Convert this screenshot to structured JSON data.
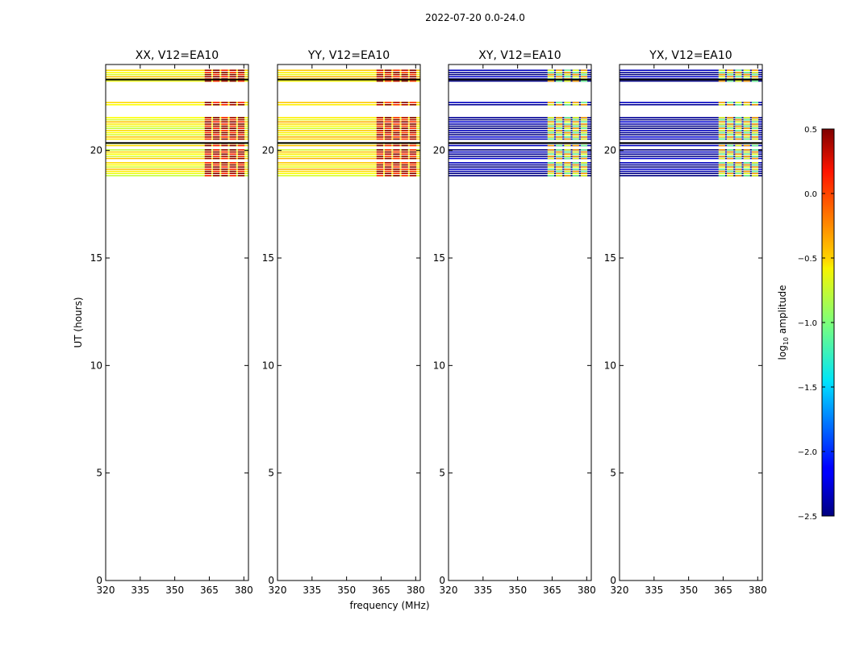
{
  "chart_data": {
    "type": "heatmap",
    "suptitle": "2022-07-20 0.0-24.0",
    "xlabel": "frequency (MHz)",
    "ylabel": "UT (hours)",
    "xlim": [
      320,
      382
    ],
    "ylim": [
      0,
      24
    ],
    "xticks": [
      320,
      335,
      350,
      365,
      380
    ],
    "yticks": [
      0,
      5,
      10,
      15,
      20
    ],
    "colorbar": {
      "label": "log10 amplitude",
      "label_main": "log",
      "label_sub": "10",
      "label_rest": " amplitude",
      "range": [
        -2.5,
        0.5
      ],
      "ticks": [
        "0.5",
        "0.0",
        "−0.5",
        "−1.0",
        "−1.5",
        "−2.0",
        "−2.5"
      ],
      "colormap": "jet"
    },
    "bands_ut": [
      [
        18.8,
        19.5
      ],
      [
        19.6,
        20.1
      ],
      [
        20.2,
        20.4
      ],
      [
        20.5,
        21.6
      ],
      [
        22.1,
        22.3
      ],
      [
        23.2,
        23.8
      ]
    ],
    "flag_lines_ut": [
      20.35,
      23.3
    ],
    "panels": [
      {
        "title": "XX, V12=EA10",
        "base_level": -0.6,
        "hot_level": 0.4,
        "hot_freq": [
          363,
          381
        ]
      },
      {
        "title": "YY, V12=EA10",
        "base_level": -0.55,
        "hot_level": 0.35,
        "hot_freq": [
          363,
          381
        ]
      },
      {
        "title": "XY, V12=EA10",
        "base_level": -2.4,
        "hot_level": -0.7,
        "hot_freq": [
          363,
          381
        ]
      },
      {
        "title": "YX, V12=EA10",
        "base_level": -2.4,
        "hot_level": -0.7,
        "hot_freq": [
          363,
          381
        ]
      }
    ]
  }
}
